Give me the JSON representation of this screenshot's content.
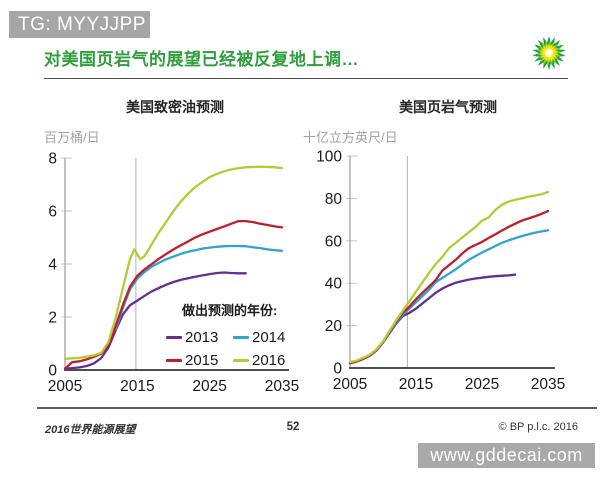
{
  "top_watermark": "TG: MYYJJPP",
  "header": {
    "title": "对美国页岩气的展望已经被反复地上调…",
    "logo": "bp-helios-logo"
  },
  "colors": {
    "title_green": "#2f9e3c",
    "watermark_gray": "#a6a6a6",
    "axis_dark": "#4d4d4d",
    "axis_light": "#9b9b9b",
    "history_line": "#b3b3b3",
    "series_2013": "#662e91",
    "series_2014": "#2fa3d2",
    "series_2015": "#be1e2d",
    "series_2016": "#b3cc33"
  },
  "legend": {
    "title": "做出预测的年份:",
    "items": [
      {
        "label": "2013",
        "color": "#662e91"
      },
      {
        "label": "2014",
        "color": "#2fa3d2"
      },
      {
        "label": "2015",
        "color": "#be1e2d"
      },
      {
        "label": "2016",
        "color": "#b3cc33"
      }
    ]
  },
  "footer": {
    "left": "2016世界能源展望",
    "page": "52",
    "right": "© BP p.l.c. 2016"
  },
  "bottom_watermark": "www.gddecai.com",
  "chart_data": [
    {
      "id": "us-tight-oil-forecast",
      "type": "line",
      "title": "美国致密油预测",
      "ylabel": "百万桶/日",
      "xlim": [
        2005,
        2035
      ],
      "ylim": [
        0,
        8
      ],
      "x_ticks": [
        2005,
        2015,
        2025,
        2035
      ],
      "y_ticks": [
        0,
        2,
        4,
        6,
        8
      ],
      "grid": false,
      "history_line_year": 2014.8,
      "legend_position": "inside-lower-right",
      "series": [
        {
          "name": "2013",
          "color": "#662e91",
          "points": [
            [
              2005,
              0.05
            ],
            [
              2006,
              0.07
            ],
            [
              2007,
              0.1
            ],
            [
              2008,
              0.15
            ],
            [
              2009,
              0.25
            ],
            [
              2010,
              0.45
            ],
            [
              2011,
              0.85
            ],
            [
              2012,
              1.5
            ],
            [
              2013,
              2.1
            ],
            [
              2014,
              2.45
            ],
            [
              2015,
              2.62
            ],
            [
              2016,
              2.8
            ],
            [
              2017,
              2.97
            ],
            [
              2018,
              3.1
            ],
            [
              2019,
              3.22
            ],
            [
              2020,
              3.32
            ],
            [
              2021,
              3.4
            ],
            [
              2022,
              3.46
            ],
            [
              2023,
              3.52
            ],
            [
              2024,
              3.57
            ],
            [
              2025,
              3.62
            ],
            [
              2026,
              3.66
            ],
            [
              2027,
              3.68
            ],
            [
              2028,
              3.66
            ],
            [
              2029,
              3.65
            ],
            [
              2030,
              3.65
            ]
          ]
        },
        {
          "name": "2014",
          "color": "#2fa3d2",
          "points": [
            [
              2012,
              1.55
            ],
            [
              2013,
              2.35
            ],
            [
              2014,
              3.05
            ],
            [
              2015,
              3.45
            ],
            [
              2016,
              3.7
            ],
            [
              2017,
              3.9
            ],
            [
              2018,
              4.05
            ],
            [
              2019,
              4.18
            ],
            [
              2020,
              4.28
            ],
            [
              2021,
              4.38
            ],
            [
              2022,
              4.46
            ],
            [
              2023,
              4.52
            ],
            [
              2024,
              4.58
            ],
            [
              2025,
              4.62
            ],
            [
              2026,
              4.65
            ],
            [
              2027,
              4.67
            ],
            [
              2028,
              4.68
            ],
            [
              2029,
              4.68
            ],
            [
              2030,
              4.67
            ],
            [
              2031,
              4.63
            ],
            [
              2032,
              4.6
            ],
            [
              2033,
              4.55
            ],
            [
              2034,
              4.52
            ],
            [
              2035,
              4.5
            ]
          ]
        },
        {
          "name": "2015",
          "color": "#be1e2d",
          "points": [
            [
              2005,
              0.05
            ],
            [
              2006,
              0.3
            ],
            [
              2007,
              0.33
            ],
            [
              2008,
              0.4
            ],
            [
              2009,
              0.5
            ],
            [
              2010,
              0.62
            ],
            [
              2011,
              0.95
            ],
            [
              2012,
              1.65
            ],
            [
              2013,
              2.45
            ],
            [
              2014,
              3.15
            ],
            [
              2015,
              3.55
            ],
            [
              2016,
              3.8
            ],
            [
              2017,
              4.0
            ],
            [
              2018,
              4.2
            ],
            [
              2019,
              4.38
            ],
            [
              2020,
              4.55
            ],
            [
              2021,
              4.7
            ],
            [
              2022,
              4.85
            ],
            [
              2023,
              5.0
            ],
            [
              2024,
              5.12
            ],
            [
              2025,
              5.22
            ],
            [
              2026,
              5.32
            ],
            [
              2027,
              5.42
            ],
            [
              2028,
              5.52
            ],
            [
              2029,
              5.62
            ],
            [
              2030,
              5.62
            ],
            [
              2031,
              5.58
            ],
            [
              2032,
              5.52
            ],
            [
              2033,
              5.47
            ],
            [
              2034,
              5.42
            ],
            [
              2035,
              5.38
            ]
          ]
        },
        {
          "name": "2016",
          "color": "#b3cc33",
          "points": [
            [
              2005,
              0.42
            ],
            [
              2006,
              0.44
            ],
            [
              2007,
              0.46
            ],
            [
              2008,
              0.5
            ],
            [
              2009,
              0.55
            ],
            [
              2010,
              0.65
            ],
            [
              2011,
              1.05
            ],
            [
              2012,
              1.95
            ],
            [
              2013,
              3.1
            ],
            [
              2014,
              4.2
            ],
            [
              2014.6,
              4.55
            ],
            [
              2015.4,
              4.18
            ],
            [
              2016,
              4.3
            ],
            [
              2017,
              4.75
            ],
            [
              2018,
              5.2
            ],
            [
              2019,
              5.6
            ],
            [
              2020,
              6.0
            ],
            [
              2021,
              6.35
            ],
            [
              2022,
              6.65
            ],
            [
              2023,
              6.9
            ],
            [
              2024,
              7.1
            ],
            [
              2025,
              7.28
            ],
            [
              2026,
              7.4
            ],
            [
              2027,
              7.5
            ],
            [
              2028,
              7.57
            ],
            [
              2029,
              7.62
            ],
            [
              2030,
              7.65
            ],
            [
              2031,
              7.66
            ],
            [
              2032,
              7.67
            ],
            [
              2033,
              7.66
            ],
            [
              2034,
              7.65
            ],
            [
              2035,
              7.62
            ]
          ]
        }
      ]
    },
    {
      "id": "us-shale-gas-forecast",
      "type": "line",
      "title": "美国页岩气预测",
      "ylabel": "十亿立方英尺/日",
      "xlim": [
        2005,
        2035
      ],
      "ylim": [
        0,
        100
      ],
      "x_ticks": [
        2005,
        2015,
        2025,
        2035
      ],
      "y_ticks": [
        0,
        20,
        40,
        60,
        80,
        100
      ],
      "grid": false,
      "history_line_year": 2013.7,
      "series": [
        {
          "name": "2013",
          "color": "#662e91",
          "points": [
            [
              2005,
              2.5
            ],
            [
              2006,
              3.2
            ],
            [
              2007,
              4.3
            ],
            [
              2008,
              5.8
            ],
            [
              2009,
              8.2
            ],
            [
              2010,
              12
            ],
            [
              2011,
              16.5
            ],
            [
              2012,
              21
            ],
            [
              2013,
              24.5
            ],
            [
              2014,
              26
            ],
            [
              2015,
              28
            ],
            [
              2016,
              30.5
            ],
            [
              2017,
              33
            ],
            [
              2018,
              35.5
            ],
            [
              2019,
              37.5
            ],
            [
              2020,
              39
            ],
            [
              2021,
              40.2
            ],
            [
              2022,
              41
            ],
            [
              2023,
              41.7
            ],
            [
              2024,
              42.2
            ],
            [
              2025,
              42.6
            ],
            [
              2026,
              43
            ],
            [
              2027,
              43.3
            ],
            [
              2028,
              43.5
            ],
            [
              2029,
              43.7
            ],
            [
              2030,
              44
            ]
          ]
        },
        {
          "name": "2014",
          "color": "#2fa3d2",
          "points": [
            [
              2005,
              2.5
            ],
            [
              2006,
              3.2
            ],
            [
              2007,
              4.4
            ],
            [
              2008,
              6
            ],
            [
              2009,
              8.4
            ],
            [
              2010,
              12.2
            ],
            [
              2011,
              17
            ],
            [
              2012,
              21.5
            ],
            [
              2013,
              25
            ],
            [
              2014,
              28
            ],
            [
              2015,
              31
            ],
            [
              2016,
              34
            ],
            [
              2017,
              37
            ],
            [
              2018,
              40.5
            ],
            [
              2019,
              42.5
            ],
            [
              2020,
              44.5
            ],
            [
              2021,
              46.5
            ],
            [
              2022,
              48.8
            ],
            [
              2023,
              51
            ],
            [
              2024,
              52.8
            ],
            [
              2025,
              54.5
            ],
            [
              2026,
              56
            ],
            [
              2027,
              57.5
            ],
            [
              2028,
              59
            ],
            [
              2029,
              60.2
            ],
            [
              2030,
              61.2
            ],
            [
              2031,
              62.2
            ],
            [
              2032,
              63
            ],
            [
              2033,
              63.8
            ],
            [
              2034,
              64.4
            ],
            [
              2035,
              65
            ]
          ]
        },
        {
          "name": "2015",
          "color": "#be1e2d",
          "points": [
            [
              2005,
              2.2
            ],
            [
              2006,
              3
            ],
            [
              2007,
              4.3
            ],
            [
              2008,
              6
            ],
            [
              2009,
              8.5
            ],
            [
              2010,
              12.3
            ],
            [
              2011,
              17.2
            ],
            [
              2012,
              22
            ],
            [
              2013,
              26
            ],
            [
              2014,
              29
            ],
            [
              2015,
              32.5
            ],
            [
              2016,
              35.5
            ],
            [
              2017,
              38.5
            ],
            [
              2018,
              41.5
            ],
            [
              2019,
              46
            ],
            [
              2020,
              48.5
            ],
            [
              2021,
              51
            ],
            [
              2022,
              54
            ],
            [
              2023,
              56.5
            ],
            [
              2024,
              58
            ],
            [
              2025,
              59.5
            ],
            [
              2026,
              61.3
            ],
            [
              2027,
              63
            ],
            [
              2028,
              64.8
            ],
            [
              2029,
              66.5
            ],
            [
              2030,
              68
            ],
            [
              2031,
              69.5
            ],
            [
              2032,
              70.5
            ],
            [
              2033,
              71.5
            ],
            [
              2034,
              72.7
            ],
            [
              2035,
              74
            ]
          ]
        },
        {
          "name": "2016",
          "color": "#b3cc33",
          "points": [
            [
              2005,
              2.8
            ],
            [
              2006,
              3.5
            ],
            [
              2007,
              4.8
            ],
            [
              2008,
              6.3
            ],
            [
              2009,
              8.8
            ],
            [
              2010,
              12.5
            ],
            [
              2011,
              17.5
            ],
            [
              2012,
              22.5
            ],
            [
              2013,
              27
            ],
            [
              2014,
              31.5
            ],
            [
              2015,
              36
            ],
            [
              2016,
              40.5
            ],
            [
              2017,
              45
            ],
            [
              2018,
              49
            ],
            [
              2019,
              52.5
            ],
            [
              2020,
              56.5
            ],
            [
              2021,
              59
            ],
            [
              2022,
              61.5
            ],
            [
              2023,
              64
            ],
            [
              2024,
              66.5
            ],
            [
              2025,
              69.5
            ],
            [
              2026,
              71
            ],
            [
              2027,
              74.5
            ],
            [
              2028,
              77
            ],
            [
              2029,
              78.5
            ],
            [
              2030,
              79.3
            ],
            [
              2031,
              80
            ],
            [
              2032,
              80.8
            ],
            [
              2033,
              81.3
            ],
            [
              2034,
              82
            ],
            [
              2035,
              83
            ]
          ]
        }
      ]
    }
  ]
}
